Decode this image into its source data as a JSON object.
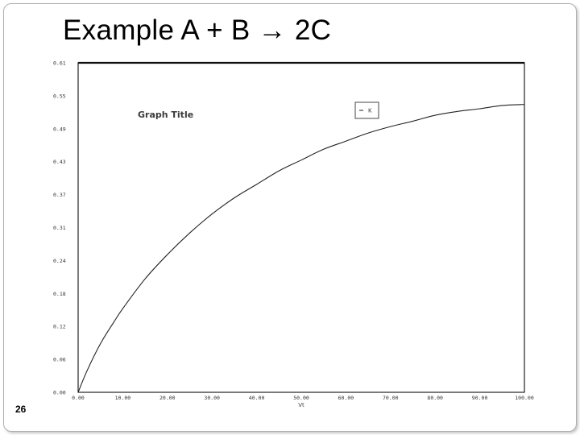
{
  "slide": {
    "title": "Example   A + B → 2C",
    "number": "26"
  },
  "chart_data": {
    "type": "line",
    "title": "Graph Title",
    "xlabel": "Vt",
    "ylabel": "",
    "xlim": [
      0,
      100
    ],
    "ylim": [
      0,
      0.61
    ],
    "x_ticks": [
      "0.00",
      "10.00",
      "20.00",
      "30.00",
      "40.00",
      "50.00",
      "60.00",
      "70.00",
      "80.00",
      "90.00",
      "100.00"
    ],
    "y_ticks": [
      "0.00",
      "0.06",
      "0.12",
      "0.18",
      "0.24",
      "0.31",
      "0.37",
      "0.43",
      "0.49",
      "0.55",
      "0.61"
    ],
    "legend_position": "top-right",
    "grid": false,
    "series": [
      {
        "name": "K",
        "color": "#222222",
        "x": [
          0,
          2,
          5,
          8,
          10,
          15,
          20,
          25,
          30,
          35,
          40,
          45,
          50,
          55,
          60,
          65,
          70,
          75,
          80,
          85,
          90,
          95,
          100
        ],
        "y": [
          0,
          0.04,
          0.09,
          0.13,
          0.155,
          0.21,
          0.255,
          0.295,
          0.33,
          0.36,
          0.385,
          0.41,
          0.43,
          0.45,
          0.465,
          0.48,
          0.492,
          0.502,
          0.513,
          0.52,
          0.525,
          0.531,
          0.533
        ]
      }
    ]
  }
}
